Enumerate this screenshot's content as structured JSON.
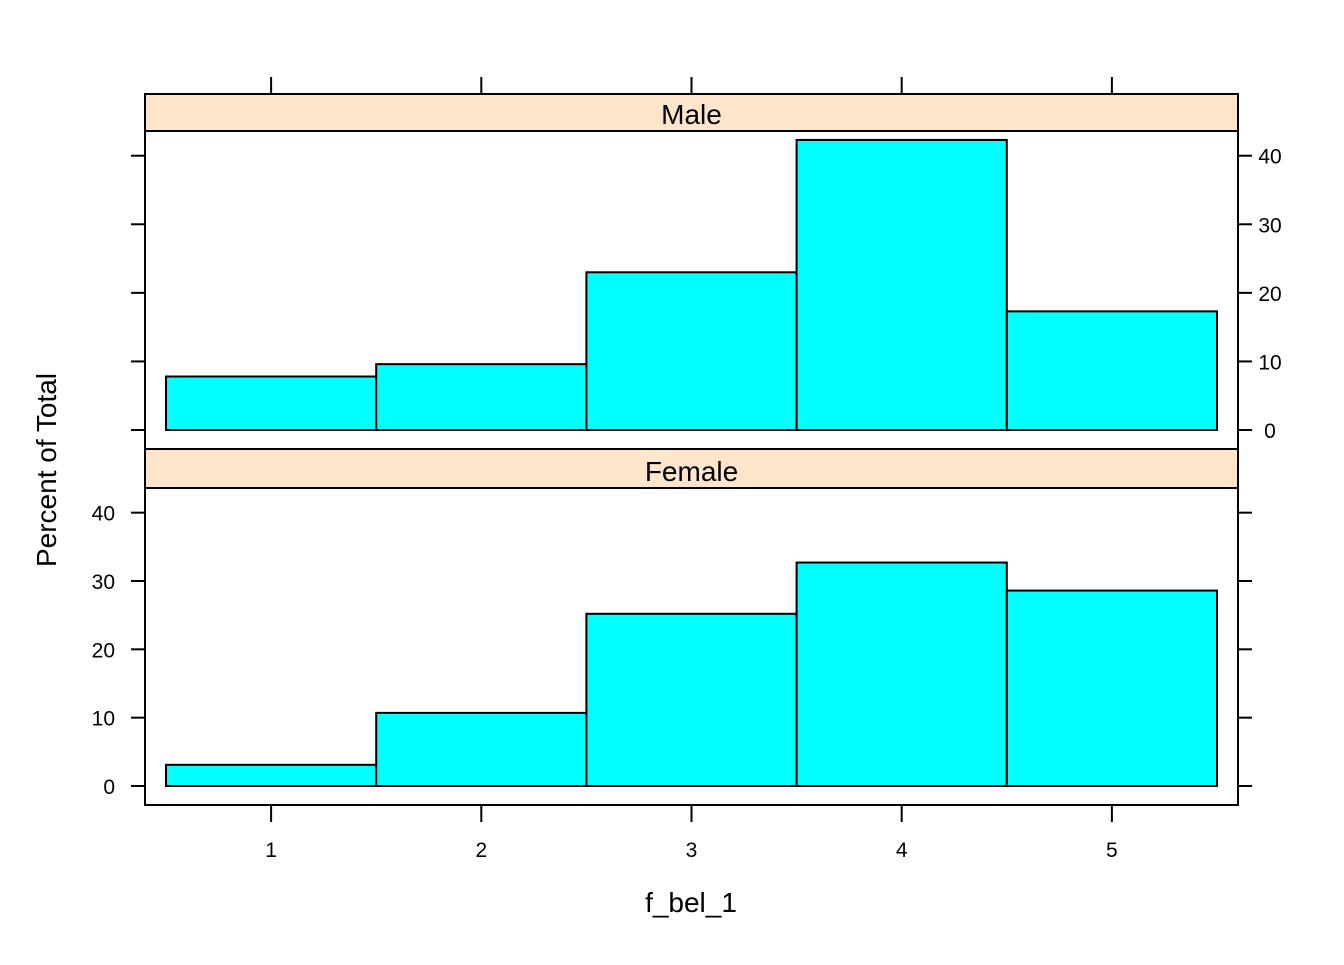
{
  "chart_data": {
    "type": "bar",
    "subtype": "histogram",
    "layout": "lattice, 2 panels stacked",
    "xlabel": "f_bel_1",
    "ylabel": "Percent of Total",
    "x_ticks": [
      "1",
      "2",
      "3",
      "4",
      "5"
    ],
    "y_ticks": [
      "0",
      "10",
      "20",
      "30",
      "40"
    ],
    "xlim": [
      0.5,
      5.5
    ],
    "ylim": [
      0,
      45
    ],
    "colors": {
      "bar_fill": "#00ffff",
      "strip_fill": "#ffe5cc",
      "border": "#000000"
    },
    "panels": [
      {
        "strip": "Male",
        "bins": [
          {
            "from": 0.5,
            "to": 1.5,
            "value": 7.8
          },
          {
            "from": 1.5,
            "to": 2.5,
            "value": 9.6
          },
          {
            "from": 2.5,
            "to": 3.5,
            "value": 23.0
          },
          {
            "from": 3.5,
            "to": 4.5,
            "value": 42.3
          },
          {
            "from": 4.5,
            "to": 5.5,
            "value": 17.3
          }
        ]
      },
      {
        "strip": "Female",
        "bins": [
          {
            "from": 0.5,
            "to": 1.5,
            "value": 3.1
          },
          {
            "from": 1.5,
            "to": 2.5,
            "value": 10.7
          },
          {
            "from": 2.5,
            "to": 3.5,
            "value": 25.2
          },
          {
            "from": 3.5,
            "to": 4.5,
            "value": 32.7
          },
          {
            "from": 4.5,
            "to": 5.5,
            "value": 28.6
          }
        ]
      }
    ]
  }
}
